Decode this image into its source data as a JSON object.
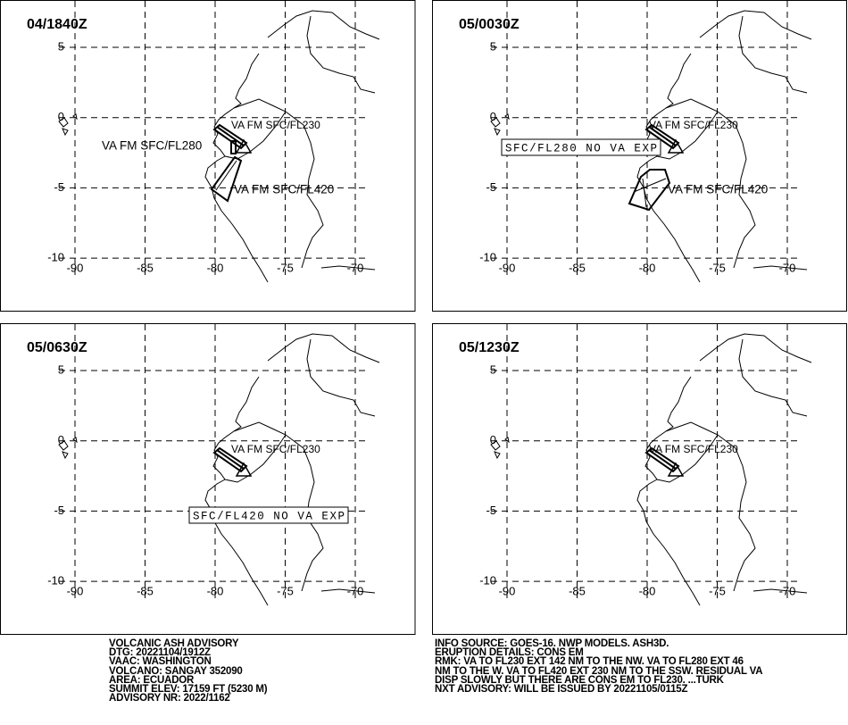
{
  "panels": [
    {
      "time": "04/1840Z",
      "labels": [
        "VA FM SFC/FL230",
        "VA FM SFC/FL280",
        "VA FM SFC/FL420"
      ]
    },
    {
      "time": "05/0030Z",
      "labels": [
        "VA FM SFC/FL230",
        "SFC/FL280 NO VA EXP",
        "VA FM SFC/FL420"
      ]
    },
    {
      "time": "05/0630Z",
      "labels": [
        "VA FM SFC/FL230",
        "SFC/FL420 NO VA EXP"
      ]
    },
    {
      "time": "05/1230Z",
      "labels": [
        "VA FM SFC/FL230"
      ]
    }
  ],
  "x_ticks": [
    "-90",
    "-85",
    "-80",
    "-75",
    "-70"
  ],
  "y_ticks": [
    "5",
    "0",
    "-5",
    "-10"
  ],
  "advisory_left": [
    "VOLCANIC ASH ADVISORY",
    "DTG: 20221104/1912Z",
    "VAAC: WASHINGTON",
    "VOLCANO: SANGAY 352090",
    "AREA: ECUADOR",
    "SUMMIT ELEV: 17159 FT (5230 M)",
    "ADVISORY NR: 2022/1162"
  ],
  "advisory_right": [
    "INFO SOURCE: GOES-16. NWP MODELS. ASH3D.",
    "ERUPTION DETAILS: CONS EM",
    "RMK: VA TO FL230 EXT 142 NM TO THE NW. VA TO FL280 EXT 46",
    "NM TO THE W. VA TO FL420 EXT 230 NM TO THE SSW. RESIDUAL VA",
    "DISP SLOWLY BUT THERE ARE CONS EM TO FL230. ...TURK",
    "NXT ADVISORY: WILL BE ISSUED BY 20221105/0115Z"
  ]
}
